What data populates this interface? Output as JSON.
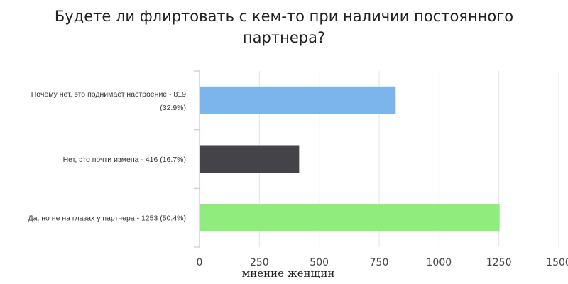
{
  "chart_data": {
    "type": "bar",
    "orientation": "horizontal",
    "title_lines": [
      "Будете ли флиртовать с кем-то при наличии постоянного",
      "партнера?"
    ],
    "xlabel": "мнение женщин",
    "ylabel": "",
    "xlim": [
      0,
      1500
    ],
    "xticks": [
      0,
      250,
      500,
      750,
      1000,
      1250,
      1500
    ],
    "grid": true,
    "legend": "none",
    "categories": [
      [
        "Почему нет, это поднимает настроение - 819",
        "(32.9%)"
      ],
      [
        "Нет, это почти измена - 416 (16.7%)"
      ],
      [
        "Да, но не на глазах у партнера - 1253 (50.4%)"
      ]
    ],
    "values": [
      819,
      416,
      1253
    ],
    "colors": [
      "#7cb5ec",
      "#434348",
      "#90ed7d"
    ]
  }
}
